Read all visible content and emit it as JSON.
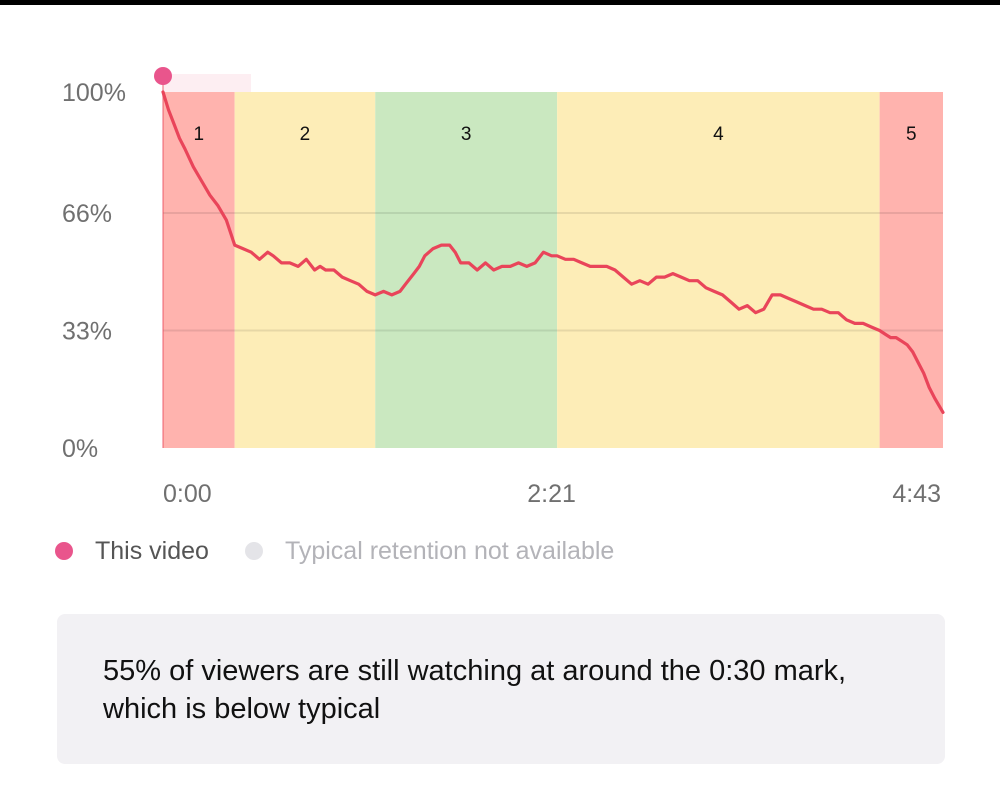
{
  "chart_data": {
    "type": "line",
    "title": "",
    "xlabel": "",
    "ylabel": "",
    "x_unit": "seconds",
    "xlim": [
      0,
      283
    ],
    "ylim": [
      0,
      100
    ],
    "grid": true,
    "y_ticks": [
      {
        "value": 100,
        "label": "100%"
      },
      {
        "value": 66,
        "label": "66%"
      },
      {
        "value": 33,
        "label": "33%"
      },
      {
        "value": 0,
        "label": "0%"
      }
    ],
    "x_ticks": [
      {
        "value": 0,
        "label": "0:00"
      },
      {
        "value": 141,
        "label": "2:21"
      },
      {
        "value": 283,
        "label": "4:43"
      }
    ],
    "zones": [
      {
        "label": "1",
        "start": 0,
        "end": 26,
        "color": "#ffb3ae"
      },
      {
        "label": "2",
        "start": 26,
        "end": 77,
        "color": "#fdedb7"
      },
      {
        "label": "3",
        "start": 77,
        "end": 143,
        "color": "#cae8c0"
      },
      {
        "label": "4",
        "start": 143,
        "end": 260,
        "color": "#fdedb7"
      },
      {
        "label": "5",
        "start": 260,
        "end": 283,
        "color": "#ffb3ae"
      }
    ],
    "series": [
      {
        "name": "This video",
        "color": "#e9455a",
        "x": [
          0,
          2,
          4,
          6,
          8,
          11,
          14,
          17,
          20,
          23,
          26,
          29,
          32,
          35,
          38,
          40,
          43,
          46,
          49,
          52,
          55,
          57,
          59,
          62,
          65,
          68,
          71,
          74,
          77,
          80,
          83,
          86,
          88,
          91,
          93,
          95,
          98,
          101,
          104,
          106,
          108,
          111,
          114,
          117,
          120,
          123,
          126,
          129,
          132,
          135,
          138,
          141,
          143,
          146,
          149,
          152,
          155,
          158,
          161,
          164,
          167,
          170,
          173,
          176,
          179,
          182,
          185,
          188,
          191,
          194,
          197,
          200,
          203,
          206,
          209,
          212,
          215,
          218,
          221,
          224,
          227,
          230,
          233,
          236,
          239,
          242,
          245,
          248,
          251,
          254,
          257,
          260,
          262,
          264,
          266,
          268,
          270,
          272,
          274,
          276,
          278,
          280,
          283
        ],
        "y": [
          100,
          95,
          91,
          87,
          84,
          79,
          75,
          71,
          68,
          64,
          57,
          56,
          55,
          53,
          55,
          54,
          52,
          52,
          51,
          53,
          50,
          51,
          50,
          50,
          48,
          47,
          46,
          44,
          43,
          44,
          43,
          44,
          46,
          49,
          51,
          54,
          56,
          57,
          57,
          55,
          52,
          52,
          50,
          52,
          50,
          51,
          51,
          52,
          51,
          52,
          55,
          54,
          54,
          53,
          53,
          52,
          51,
          51,
          51,
          50,
          48,
          46,
          47,
          46,
          48,
          48,
          49,
          48,
          47,
          47,
          45,
          44,
          43,
          41,
          39,
          40,
          38,
          39,
          43,
          43,
          42,
          41,
          40,
          39,
          39,
          38,
          38,
          36,
          35,
          35,
          34,
          33,
          32,
          31,
          31,
          30,
          29,
          27,
          24,
          21,
          17,
          14,
          10
        ]
      }
    ],
    "legend": {
      "placement": "bottom-left",
      "entries": [
        {
          "label": "This video",
          "color": "#e9558c"
        },
        {
          "label": "Typical retention not available",
          "color": "#e4e4e8"
        }
      ]
    },
    "marker": {
      "x": 0,
      "y": 100,
      "color": "#e9558c"
    }
  },
  "summary": {
    "text": "55% of viewers are still watching at around the 0:30 mark, which is below typical"
  }
}
